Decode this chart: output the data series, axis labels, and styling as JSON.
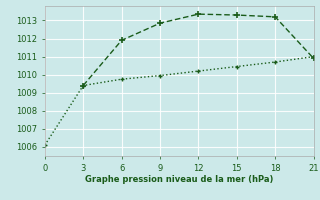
{
  "line1_x": [
    0,
    3,
    6,
    9,
    12,
    15,
    18,
    21
  ],
  "line1_y": [
    1006.1,
    1009.4,
    1009.75,
    1009.95,
    1010.2,
    1010.45,
    1010.7,
    1011.0
  ],
  "line2_x": [
    3,
    6,
    9,
    12,
    15,
    18,
    21
  ],
  "line2_y": [
    1009.4,
    1011.9,
    1012.85,
    1013.35,
    1013.3,
    1013.2,
    1010.9
  ],
  "color": "#1a5c1a",
  "bg_color": "#cce9e9",
  "grid_color": "#b8dada",
  "text_color": "#1a5c1a",
  "xlabel": "Graphe pression niveau de la mer (hPa)",
  "xlim": [
    0,
    21
  ],
  "ylim": [
    1005.5,
    1013.8
  ],
  "yticks": [
    1006,
    1007,
    1008,
    1009,
    1010,
    1011,
    1012,
    1013
  ],
  "xticks": [
    0,
    3,
    6,
    9,
    12,
    15,
    18,
    21
  ]
}
